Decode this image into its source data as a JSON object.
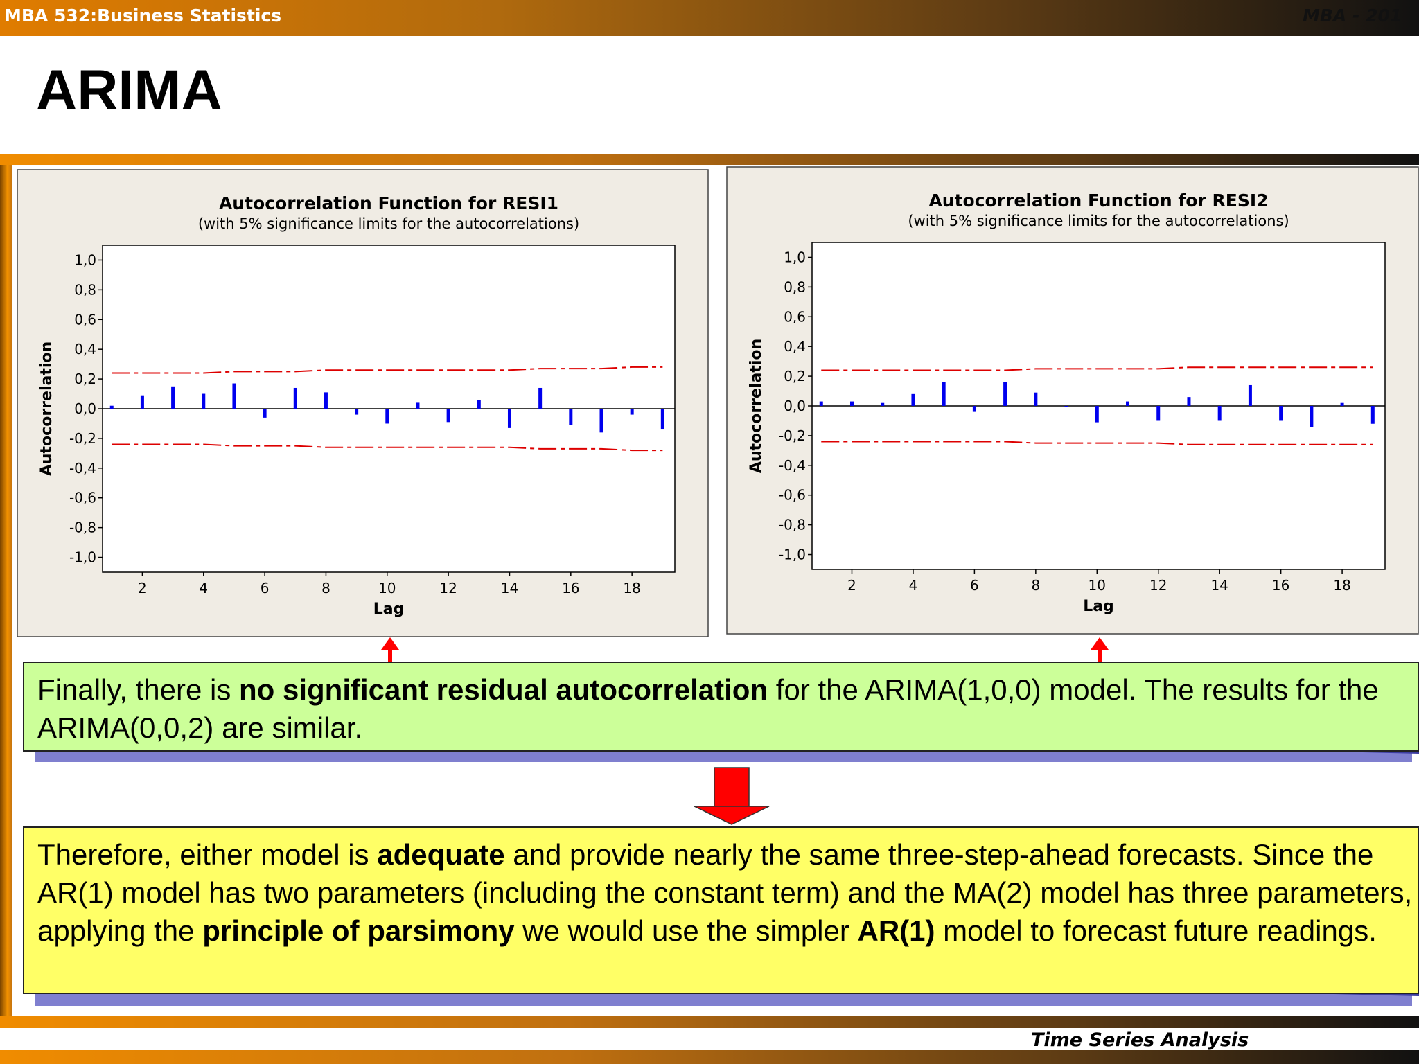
{
  "header": {
    "course": "MBA 532:Business Statistics",
    "corner": "MBA - 201"
  },
  "slide_title": "ARIMA",
  "chart_data": [
    {
      "type": "bar",
      "title": "Autocorrelation Function for RESI1",
      "subtitle": "(with 5% significance limits for the autocorrelations)",
      "xlabel": "Lag",
      "ylabel": "Autocorrelation",
      "xlim": [
        0.7,
        19.4
      ],
      "ylim": [
        -1.1,
        1.1
      ],
      "yticks": [
        "1,0",
        "0,8",
        "0,6",
        "0,4",
        "0,2",
        "0,0",
        "-0,2",
        "-0,4",
        "-0,6",
        "-0,8",
        "-1,0"
      ],
      "xticks": [
        "2",
        "4",
        "6",
        "8",
        "10",
        "12",
        "14",
        "16",
        "18"
      ],
      "lags": [
        1,
        2,
        3,
        4,
        5,
        6,
        7,
        8,
        9,
        10,
        11,
        12,
        13,
        14,
        15,
        16,
        17,
        18,
        19
      ],
      "values": [
        0.02,
        0.09,
        0.15,
        0.1,
        0.17,
        -0.06,
        0.14,
        0.11,
        -0.04,
        -0.1,
        0.04,
        -0.09,
        0.06,
        -0.13,
        0.14,
        -0.11,
        -0.16,
        -0.04,
        -0.14
      ],
      "upper_limit": [
        0.24,
        0.24,
        0.24,
        0.24,
        0.25,
        0.25,
        0.25,
        0.26,
        0.26,
        0.26,
        0.26,
        0.26,
        0.26,
        0.26,
        0.27,
        0.27,
        0.27,
        0.28,
        0.28
      ],
      "lower_limit": [
        -0.24,
        -0.24,
        -0.24,
        -0.24,
        -0.25,
        -0.25,
        -0.25,
        -0.26,
        -0.26,
        -0.26,
        -0.26,
        -0.26,
        -0.26,
        -0.26,
        -0.27,
        -0.27,
        -0.27,
        -0.28,
        -0.28
      ],
      "bar_color": "#0000ee",
      "limit_color": "#dd0000",
      "grid": false
    },
    {
      "type": "bar",
      "title": "Autocorrelation Function for RESI2",
      "subtitle": "(with 5% significance limits for the autocorrelations)",
      "xlabel": "Lag",
      "ylabel": "Autocorrelation",
      "xlim": [
        0.7,
        19.4
      ],
      "ylim": [
        -1.1,
        1.1
      ],
      "yticks": [
        "1,0",
        "0,8",
        "0,6",
        "0,4",
        "0,2",
        "0,0",
        "-0,2",
        "-0,4",
        "-0,6",
        "-0,8",
        "-1,0"
      ],
      "xticks": [
        "2",
        "4",
        "6",
        "8",
        "10",
        "12",
        "14",
        "16",
        "18"
      ],
      "lags": [
        1,
        2,
        3,
        4,
        5,
        6,
        7,
        8,
        9,
        10,
        11,
        12,
        13,
        14,
        15,
        16,
        17,
        18,
        19
      ],
      "values": [
        0.03,
        0.03,
        0.02,
        0.08,
        0.16,
        -0.04,
        0.16,
        0.09,
        0.0,
        -0.11,
        0.03,
        -0.1,
        0.06,
        -0.1,
        0.14,
        -0.1,
        -0.14,
        0.02,
        -0.12
      ],
      "upper_limit": [
        0.24,
        0.24,
        0.24,
        0.24,
        0.24,
        0.24,
        0.24,
        0.25,
        0.25,
        0.25,
        0.25,
        0.25,
        0.26,
        0.26,
        0.26,
        0.26,
        0.26,
        0.26,
        0.26
      ],
      "lower_limit": [
        -0.24,
        -0.24,
        -0.24,
        -0.24,
        -0.24,
        -0.24,
        -0.24,
        -0.25,
        -0.25,
        -0.25,
        -0.25,
        -0.25,
        -0.26,
        -0.26,
        -0.26,
        -0.26,
        -0.26,
        -0.26,
        -0.26
      ],
      "bar_color": "#0000ee",
      "limit_color": "#dd0000",
      "grid": false
    }
  ],
  "callout1": {
    "t1": "Finally, there is ",
    "b1": "no significant residual autocorrelation",
    "t2": " for the ARIMA(1,0,0) model. The results for the ARIMA(0,0,2) are similar.",
    "fill": "#ccff99"
  },
  "callout2": {
    "t1": "Therefore, either model is ",
    "b1": "adequate",
    "t2": " and provide nearly the same three-step-ahead forecasts. Since the AR(1) model has two parameters (including the constant term) and the MA(2) model has three parameters, applying the ",
    "b2": "principle of parsimony",
    "t3": " we would use the simpler ",
    "b3": "AR(1)",
    "t4": " model to forecast future readings.",
    "fill": "#ffff66"
  },
  "footer": {
    "label": "Time Series Analysis"
  },
  "colors": {
    "orange": "#f39200",
    "arrow_red": "#ff0000",
    "shadow": "#7f7fcf"
  }
}
